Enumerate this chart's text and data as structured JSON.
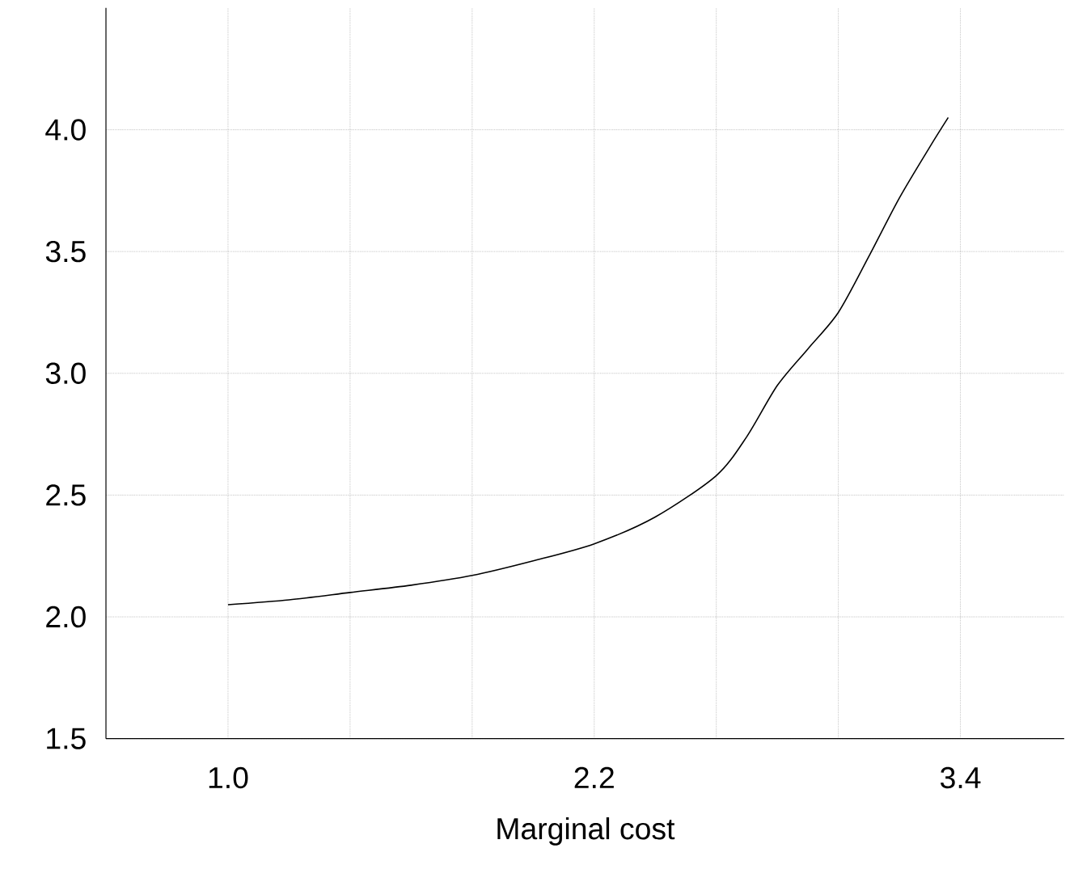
{
  "chart_data": {
    "type": "line",
    "xlabel": "Marginal cost",
    "xlim": [
      0.6,
      3.74
    ],
    "ylim": [
      1.5,
      4.5
    ],
    "xticks": [
      {
        "value": 1.0,
        "label": "1.0"
      },
      {
        "value": 1.4,
        "label": null
      },
      {
        "value": 1.8,
        "label": null
      },
      2.2,
      {
        "value": 2.6,
        "label": null
      },
      {
        "value": 3.0,
        "label": null
      },
      3.4
    ],
    "yticks": [
      1.5,
      {
        "value": 2.0,
        "label": "2.0"
      },
      2.5,
      {
        "value": 3.0,
        "label": "3.0"
      },
      3.5,
      {
        "value": 4.0,
        "label": "4.0"
      }
    ],
    "grid": true,
    "line_style": "solid",
    "marker": "none",
    "series": [
      {
        "color": "#000000",
        "x": [
          1.0,
          1.2,
          1.4,
          1.6,
          1.8,
          2.0,
          2.2,
          2.4,
          2.6,
          2.7,
          2.8,
          2.9,
          3.0,
          3.1,
          3.2,
          3.3,
          3.36
        ],
        "values": [
          2.05,
          2.07,
          2.1,
          2.13,
          2.17,
          2.23,
          2.3,
          2.41,
          2.58,
          2.74,
          2.95,
          3.1,
          3.25,
          3.48,
          3.72,
          3.93,
          4.05
        ]
      }
    ]
  }
}
